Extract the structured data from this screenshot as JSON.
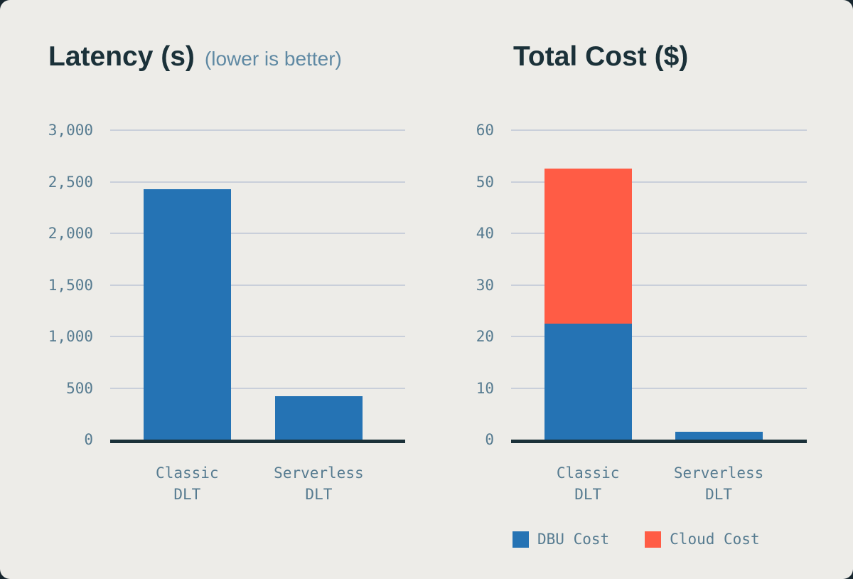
{
  "page": {
    "card_background": "#EDECE8",
    "outer_background": "#17262E"
  },
  "colors": {
    "blue": "#2573B4",
    "red": "#FF5C45",
    "navy": "#1B3139",
    "axis_label": "#567B90",
    "subtitle": "#5F89A3",
    "gridline": "#C9CFDA"
  },
  "chart_data": [
    {
      "type": "bar",
      "title": "Latency (s)",
      "subtitle": "(lower is better)",
      "categories": [
        [
          "Classic",
          "DLT"
        ],
        [
          "Serverless",
          "DLT"
        ]
      ],
      "stacked": false,
      "series": [
        {
          "name": "Latency",
          "color_key": "blue",
          "values": [
            2430,
            420
          ]
        }
      ],
      "ylim": [
        0,
        3000
      ],
      "yticks": [
        0,
        500,
        1000,
        1500,
        2000,
        2500,
        3000
      ],
      "ytick_labels": [
        "0",
        "500",
        "1,000",
        "1,500",
        "2,000",
        "2,500",
        "3,000"
      ],
      "grid": true
    },
    {
      "type": "bar",
      "title": "Total Cost ($)",
      "subtitle": "",
      "categories": [
        [
          "Classic",
          "DLT"
        ],
        [
          "Serverless",
          "DLT"
        ]
      ],
      "stacked": true,
      "series": [
        {
          "name": "DBU Cost",
          "color_key": "blue",
          "values": [
            22.5,
            1.5
          ]
        },
        {
          "name": "Cloud Cost",
          "color_key": "red",
          "values": [
            30,
            0
          ]
        }
      ],
      "ylim": [
        0,
        60
      ],
      "yticks": [
        0,
        10,
        20,
        30,
        40,
        50,
        60
      ],
      "ytick_labels": [
        "0",
        "10",
        "20",
        "30",
        "40",
        "50",
        "60"
      ],
      "grid": true,
      "legend": [
        {
          "label": "DBU Cost",
          "color_key": "blue"
        },
        {
          "label": "Cloud Cost",
          "color_key": "red"
        }
      ],
      "legend_position": "bottom"
    }
  ]
}
